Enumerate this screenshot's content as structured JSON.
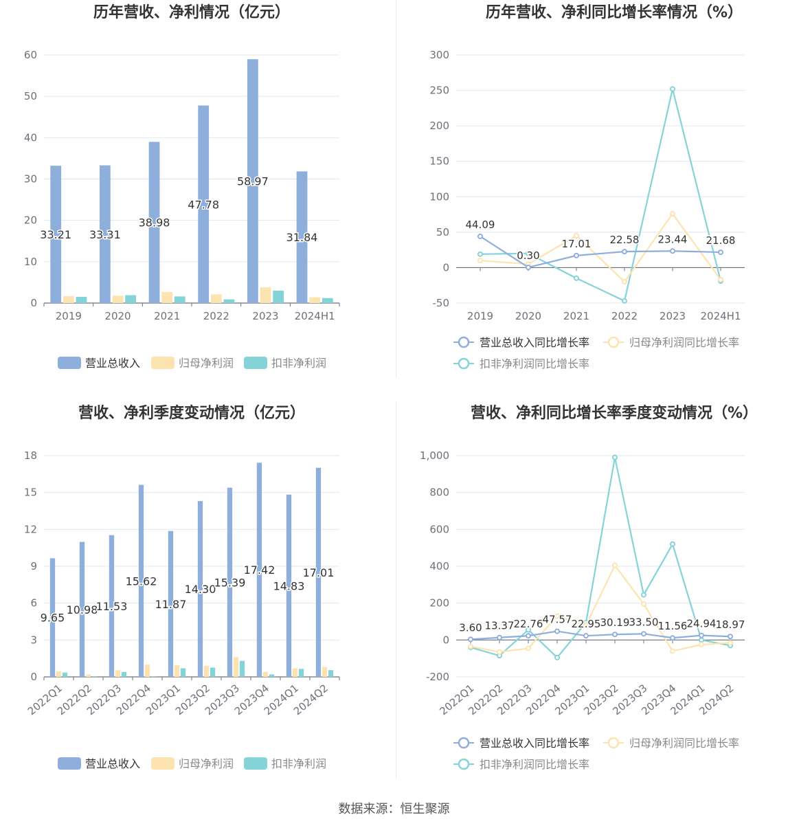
{
  "source_label": "数据来源：恒生聚源",
  "colors": {
    "revenue": "#8eaedc",
    "net_profit": "#fde3b0",
    "deducted_profit": "#83d3d8",
    "axis": "#6e7079",
    "grid": "#e0e6f1",
    "title": "#333333"
  },
  "chart_data": [
    {
      "type": "bar",
      "title": "历年营收、净利情况（亿元）",
      "categories": [
        "2019",
        "2020",
        "2021",
        "2022",
        "2023",
        "2024H1"
      ],
      "ylim": [
        0,
        60
      ],
      "yticks": [
        0,
        10,
        20,
        30,
        40,
        50,
        60
      ],
      "series": [
        {
          "name": "营业总收入",
          "values": [
            33.21,
            33.31,
            38.98,
            47.78,
            58.97,
            31.84
          ],
          "show_labels": true
        },
        {
          "name": "归母净利润",
          "values": [
            1.7,
            1.8,
            2.7,
            2.1,
            3.8,
            1.4
          ]
        },
        {
          "name": "扣非净利润",
          "values": [
            1.5,
            1.9,
            1.6,
            0.9,
            3.0,
            1.2
          ]
        }
      ],
      "legend_position": "bottom"
    },
    {
      "type": "line",
      "title": "历年营收、净利同比增长率情况（%）",
      "categories": [
        "2019",
        "2020",
        "2021",
        "2022",
        "2023",
        "2024H1"
      ],
      "ylim": [
        -50,
        300
      ],
      "yticks": [
        -50,
        0,
        50,
        100,
        150,
        200,
        250,
        300
      ],
      "series": [
        {
          "name": "营业总收入同比增长率",
          "values": [
            44.09,
            0.3,
            17.01,
            22.58,
            23.44,
            21.68
          ],
          "show_labels": true
        },
        {
          "name": "归母净利润同比增长率",
          "values": [
            10,
            5,
            45,
            -20,
            76,
            -17
          ]
        },
        {
          "name": "扣非净利润同比增长率",
          "values": [
            19,
            20,
            -15,
            -47,
            252,
            -19
          ]
        }
      ],
      "legend_position": "bottom"
    },
    {
      "type": "bar",
      "title": "营收、净利季度变动情况（亿元）",
      "categories": [
        "2022Q1",
        "2022Q2",
        "2022Q3",
        "2022Q4",
        "2023Q1",
        "2023Q2",
        "2023Q3",
        "2023Q4",
        "2024Q1",
        "2024Q2"
      ],
      "ylim": [
        0,
        18
      ],
      "yticks": [
        0,
        3,
        6,
        9,
        12,
        15,
        18
      ],
      "series": [
        {
          "name": "营业总收入",
          "values": [
            9.65,
            10.98,
            11.53,
            15.62,
            11.87,
            14.3,
            15.39,
            17.42,
            14.83,
            17.01
          ],
          "show_labels": true
        },
        {
          "name": "归母净利润",
          "values": [
            0.45,
            0.2,
            0.55,
            1.0,
            0.95,
            0.9,
            1.6,
            0.4,
            0.7,
            0.8
          ]
        },
        {
          "name": "扣非净利润",
          "values": [
            0.35,
            0.05,
            0.4,
            0.05,
            0.7,
            0.75,
            1.3,
            0.2,
            0.65,
            0.55
          ]
        }
      ],
      "legend_position": "bottom"
    },
    {
      "type": "line",
      "title": "营收、净利同比增长率季度变动情况（%）",
      "categories": [
        "2022Q1",
        "2022Q2",
        "2022Q3",
        "2022Q4",
        "2023Q1",
        "2023Q2",
        "2023Q3",
        "2023Q4",
        "2024Q1",
        "2024Q2"
      ],
      "ylim": [
        -200,
        1000
      ],
      "yticks": [
        -200,
        0,
        200,
        400,
        600,
        800,
        1000
      ],
      "ytick_labels": [
        "-200",
        "0",
        "200",
        "400",
        "600",
        "800",
        "1,000"
      ],
      "series": [
        {
          "name": "营业总收入同比增长率",
          "values": [
            3.6,
            13.37,
            22.76,
            47.57,
            22.95,
            30.19,
            33.5,
            11.56,
            24.94,
            18.97
          ],
          "show_labels": true
        },
        {
          "name": "归母净利润同比增长率",
          "values": [
            -35,
            -65,
            -45,
            130,
            80,
            405,
            195,
            -60,
            -25,
            -15
          ]
        },
        {
          "name": "扣非净利润同比增长率",
          "values": [
            -40,
            -85,
            55,
            -95,
            95,
            990,
            245,
            520,
            0,
            -30
          ]
        }
      ],
      "legend_position": "bottom"
    }
  ]
}
